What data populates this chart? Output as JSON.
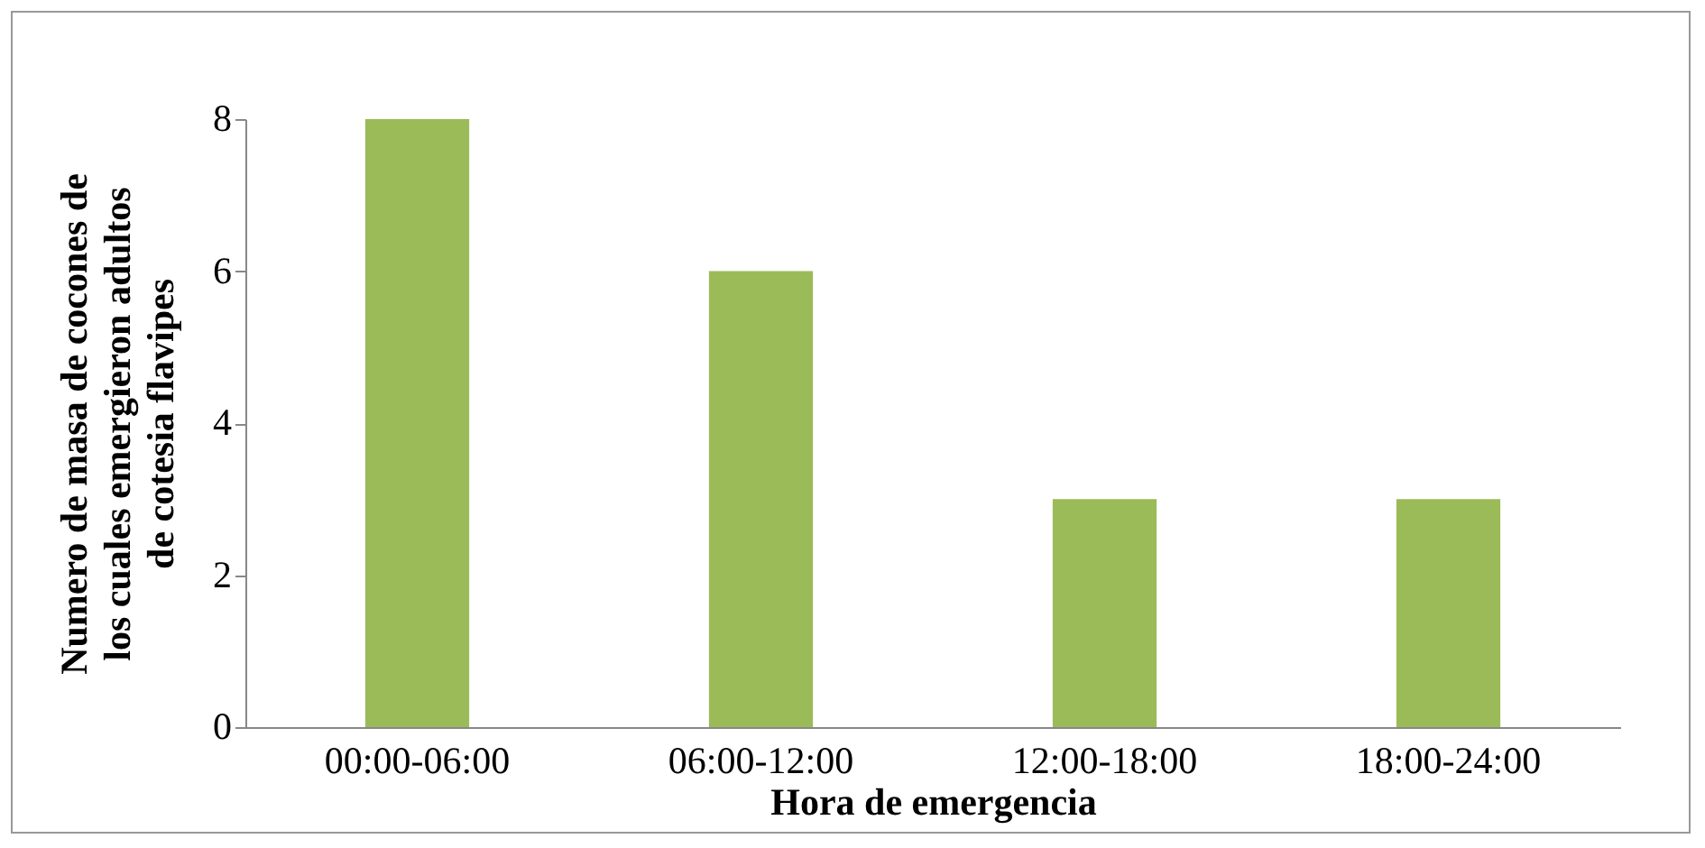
{
  "chart_data": {
    "type": "bar",
    "xlabel": "Hora de emergencia",
    "ylabel": "Numero de masa de cocones de\nlos cuales emergieron adultos\nde cotesia flavipes",
    "categories": [
      "00:00-06:00",
      "06:00-12:00",
      "12:00-18:00",
      "18:00-24:00"
    ],
    "values": [
      8,
      6,
      3,
      3
    ],
    "color": "#9bbb59",
    "ylim": [
      0,
      8
    ],
    "yticks": [
      0,
      2,
      4,
      6,
      8
    ],
    "grid": false
  }
}
